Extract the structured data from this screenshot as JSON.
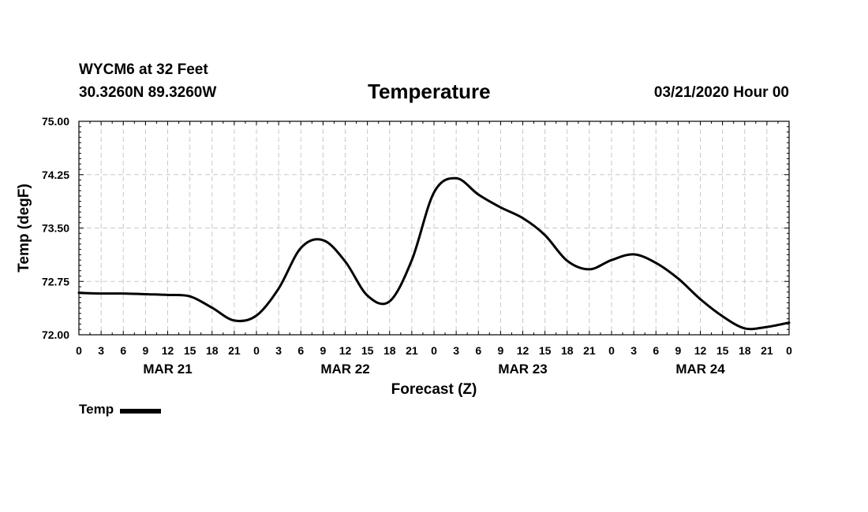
{
  "header": {
    "station": "WYCM6 at 32 Feet",
    "coords": "30.3260N 89.3260W",
    "issued": "03/21/2020 Hour 00"
  },
  "legend": {
    "label": "Temp"
  },
  "chart_data": {
    "type": "line",
    "title": "Temperature",
    "xlabel": "Forecast (Z)",
    "ylabel": "Temp (degF)",
    "ylim": [
      72.0,
      75.0
    ],
    "xlim_hours": [
      0,
      96
    ],
    "grid": true,
    "y_ticks": [
      "72.00",
      "72.75",
      "73.50",
      "74.25",
      "75.00"
    ],
    "x_tick_labels": [
      "0",
      "3",
      "6",
      "9",
      "12",
      "15",
      "18",
      "21",
      "0",
      "3",
      "6",
      "9",
      "12",
      "15",
      "18",
      "21",
      "0",
      "3",
      "6",
      "9",
      "12",
      "15",
      "18",
      "21",
      "0",
      "3",
      "6",
      "9",
      "12",
      "15",
      "18",
      "21",
      "0"
    ],
    "day_labels": [
      "MAR 21",
      "MAR 22",
      "MAR 23",
      "MAR 24"
    ],
    "series": [
      {
        "name": "Temp",
        "x_hours": [
          0,
          3,
          6,
          9,
          12,
          15,
          18,
          21,
          24,
          27,
          30,
          33,
          36,
          39,
          42,
          45,
          48,
          51,
          54,
          57,
          60,
          63,
          66,
          69,
          72,
          75,
          78,
          81,
          84,
          87,
          90,
          93,
          96
        ],
        "values": [
          72.59,
          72.58,
          72.58,
          72.57,
          72.56,
          72.54,
          72.38,
          72.2,
          72.27,
          72.65,
          73.22,
          73.33,
          73.03,
          72.55,
          72.47,
          73.05,
          74.0,
          74.2,
          73.97,
          73.79,
          73.64,
          73.4,
          73.04,
          72.92,
          73.05,
          73.13,
          73.01,
          72.79,
          72.5,
          72.26,
          72.09,
          72.11,
          72.17
        ]
      }
    ]
  }
}
